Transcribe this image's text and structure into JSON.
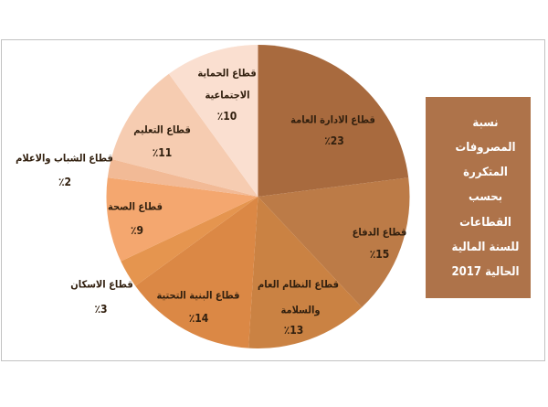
{
  "chart_data": {
    "type": "pie",
    "title": "نسبة المصروفات المتكررة بحسب القطاعات للسنة المالية الحالية 2017",
    "title_lines": [
      "نسبة",
      "المصروفات",
      "المتكررة",
      "بحسب",
      "القطاعات",
      "للسنة المالية",
      "الحالية 2017"
    ],
    "unit": "percent",
    "legend": "none",
    "start_angle_deg": 0,
    "direction": "clockwise",
    "slices": [
      {
        "label": "قطاع الادارة العامة",
        "value": 23,
        "pct_text": "٪23",
        "color": "#a86a3e",
        "label_lines": [
          "قطاع الادارة العامة"
        ],
        "line_pos": [
          [
            364.5,
            131
          ]
        ],
        "pct_pos": [
          366,
          153.5
        ]
      },
      {
        "label": "قطاع الدفاع",
        "value": 15,
        "pct_text": "٪15",
        "color": "#bc7b47",
        "label_lines": [
          "قطاع الدفاع"
        ],
        "line_pos": [
          [
            415.5,
            254
          ]
        ],
        "pct_pos": [
          415.5,
          278
        ]
      },
      {
        "label": "قطاع النظام العام والسلامة",
        "value": 13,
        "pct_text": "٪13",
        "color": "#ca8243",
        "label_lines": [
          "قطاع النظام العام",
          "والسلامة"
        ],
        "line_pos": [
          [
            326.5,
            311
          ],
          [
            329,
            338.5
          ]
        ],
        "pct_pos": [
          321.5,
          361
        ]
      },
      {
        "label": "قطاع البنية التحتية",
        "value": 14,
        "pct_text": "٪14",
        "color": "#db8845",
        "label_lines": [
          "قطاع البنية التحتية"
        ],
        "line_pos": [
          [
            217,
            322.5
          ]
        ],
        "pct_pos": [
          217.5,
          348
        ]
      },
      {
        "label": "قطاع الاسكان",
        "value": 3,
        "pct_text": "٪3",
        "color": "#e5954f",
        "label_lines": [
          "قطاع الاسكان"
        ],
        "line_pos": [
          [
            111.5,
            311
          ]
        ],
        "pct_pos": [
          110.5,
          338
        ]
      },
      {
        "label": "قطاع الصحة",
        "value": 9,
        "pct_text": "٪9",
        "color": "#f4a76f",
        "label_lines": [
          "قطاع الصحة"
        ],
        "line_pos": [
          [
            148,
            226
          ]
        ],
        "pct_pos": [
          150,
          252
        ]
      },
      {
        "label": "قطاع الشباب والاعلام",
        "value": 2,
        "pct_text": "٪2",
        "color": "#f2ba96",
        "label_lines": [
          "قطاع الشباب والاعلام"
        ],
        "line_pos": [
          [
            70.5,
            172.5
          ]
        ],
        "pct_pos": [
          71,
          199
        ]
      },
      {
        "label": "قطاع التعليم",
        "value": 11,
        "pct_text": "٪11",
        "color": "#f6ccb1",
        "label_lines": [
          "قطاع التعليم"
        ],
        "line_pos": [
          [
            177.5,
            141.5
          ]
        ],
        "pct_pos": [
          177.5,
          167
        ]
      },
      {
        "label": "قطاع الحماية الاجتماعية",
        "value": 10,
        "pct_text": "٪10",
        "color": "#fadfd0",
        "label_lines": [
          "قطاع الحماية",
          "الاجتماعية"
        ],
        "line_pos": [
          [
            248.5,
            79.5
          ],
          [
            249,
            103.5
          ]
        ],
        "pct_pos": [
          248.5,
          126.5
        ]
      }
    ],
    "pie_center": [
      282.5,
      215
    ],
    "pie_radius": 166,
    "title_box_color": "#ae734a",
    "title_text_color": "#ffffff",
    "label_color": "#32200f",
    "frame_border_color": "#c2c2c2"
  }
}
